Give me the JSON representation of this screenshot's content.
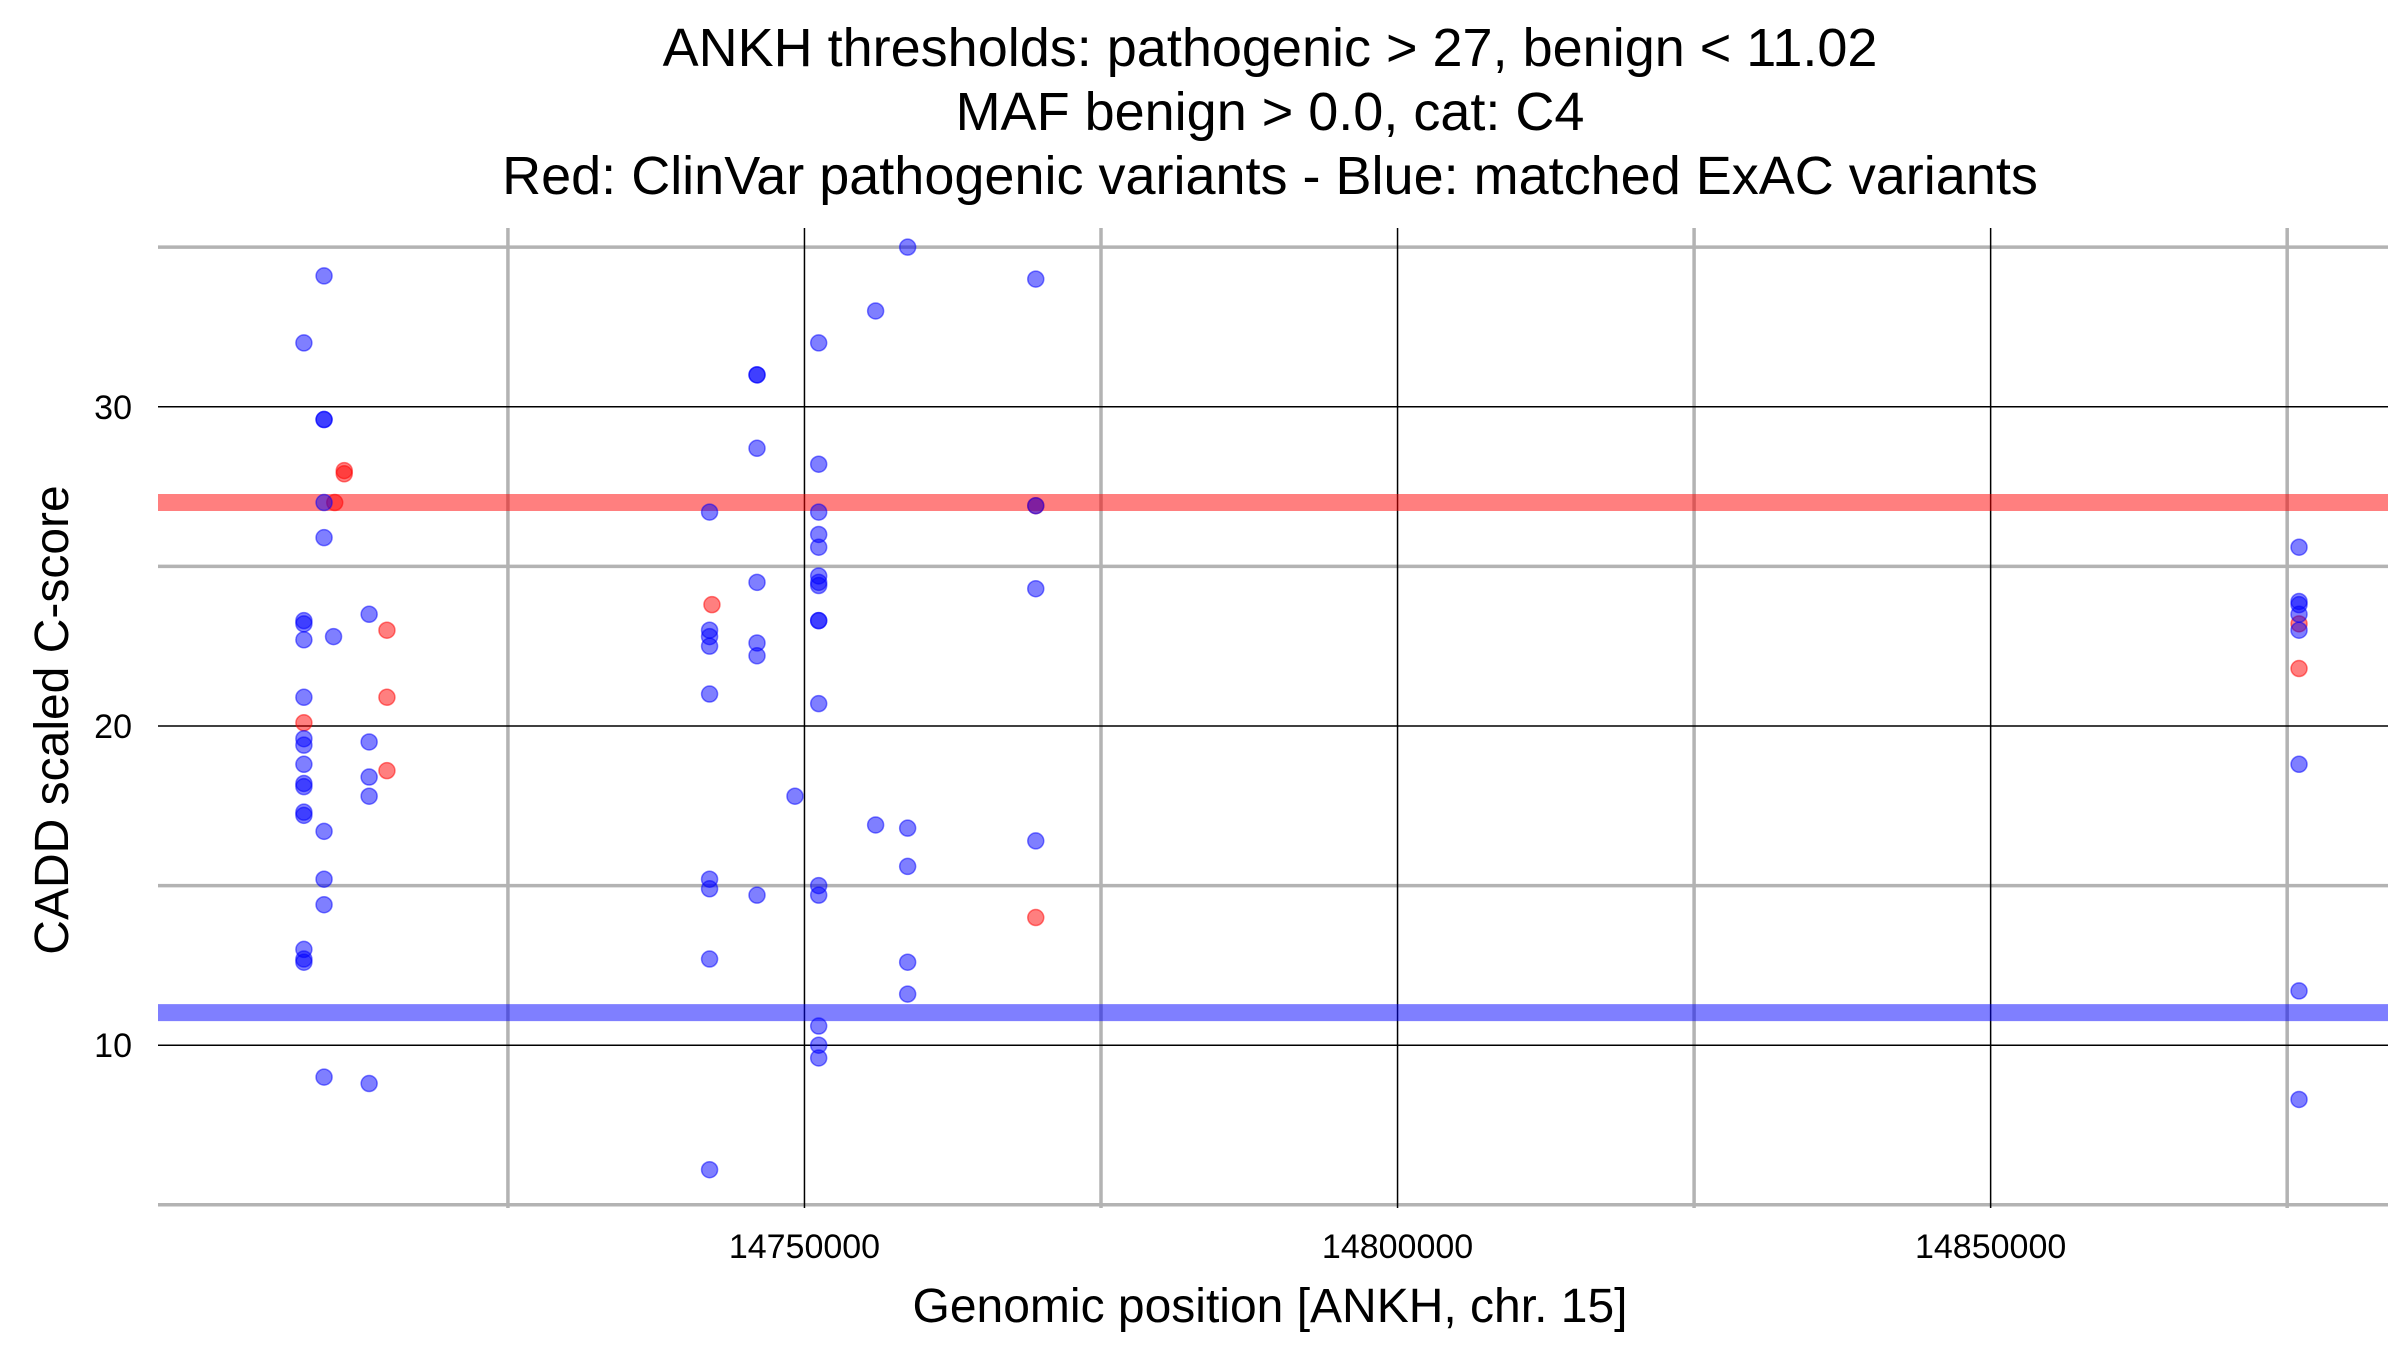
{
  "chart_data": {
    "type": "scatter",
    "title": [
      "ANKH thresholds: pathogenic > 27, benign < 11.02",
      "MAF benign > 0.0, cat: C4",
      "Red: ClinVar pathogenic variants - Blue: matched ExAC variants"
    ],
    "xlabel": "Genomic position [ANKH, chr. 15]",
    "ylabel": "CADD scaled C-score",
    "xlim": [
      14695500,
      14883500
    ],
    "ylim": [
      4.9,
      35.6
    ],
    "x_major_ticks": [
      14750000,
      14800000,
      14850000
    ],
    "x_tick_labels": [
      "14750000",
      "14800000",
      "14850000"
    ],
    "x_minor_ticks": [
      14725000,
      14775000,
      14825000,
      14875000
    ],
    "y_major_ticks": [
      10,
      20,
      30
    ],
    "y_tick_labels": [
      "10",
      "20",
      "30"
    ],
    "y_minor_ticks": [
      5,
      15,
      25,
      35
    ],
    "grid": true,
    "thresholds": [
      {
        "name": "pathogenic",
        "value": 27,
        "color": "#ff0000"
      },
      {
        "name": "benign",
        "value": 11.02,
        "color": "#0000ff"
      }
    ],
    "series": [
      {
        "name": "ClinVar pathogenic variants",
        "color": "#ff0000",
        "points": [
          [
            14711200,
            28.0
          ],
          [
            14711200,
            27.9
          ],
          [
            14710400,
            27.0
          ],
          [
            14714800,
            23.0
          ],
          [
            14714800,
            20.9
          ],
          [
            14714800,
            18.6
          ],
          [
            14707800,
            20.1
          ],
          [
            14742200,
            23.8
          ],
          [
            14769500,
            14.0
          ],
          [
            14769500,
            26.9
          ],
          [
            14876000,
            23.2
          ],
          [
            14876000,
            21.8
          ]
        ]
      },
      {
        "name": "matched ExAC variants",
        "color": "#0000ff",
        "points": [
          [
            14707800,
            32.0
          ],
          [
            14707800,
            23.3
          ],
          [
            14707800,
            23.2
          ],
          [
            14707800,
            22.7
          ],
          [
            14707800,
            20.9
          ],
          [
            14707800,
            19.6
          ],
          [
            14707800,
            19.4
          ],
          [
            14707800,
            18.8
          ],
          [
            14707800,
            18.2
          ],
          [
            14707800,
            18.1
          ],
          [
            14707800,
            17.3
          ],
          [
            14707800,
            17.2
          ],
          [
            14707800,
            13.0
          ],
          [
            14707800,
            12.7
          ],
          [
            14707800,
            12.6
          ],
          [
            14709500,
            34.1
          ],
          [
            14709500,
            29.6
          ],
          [
            14709500,
            29.6
          ],
          [
            14709500,
            27.0
          ],
          [
            14709500,
            25.9
          ],
          [
            14709500,
            16.7
          ],
          [
            14709500,
            15.2
          ],
          [
            14709500,
            14.4
          ],
          [
            14709500,
            9.0
          ],
          [
            14710300,
            22.8
          ],
          [
            14713300,
            23.5
          ],
          [
            14713300,
            19.5
          ],
          [
            14713300,
            18.4
          ],
          [
            14713300,
            17.8
          ],
          [
            14713300,
            8.8
          ],
          [
            14742000,
            26.7
          ],
          [
            14742000,
            23.0
          ],
          [
            14742000,
            22.8
          ],
          [
            14742000,
            22.5
          ],
          [
            14742000,
            21.0
          ],
          [
            14742000,
            15.2
          ],
          [
            14742000,
            14.9
          ],
          [
            14742000,
            12.7
          ],
          [
            14742000,
            6.1
          ],
          [
            14746000,
            31.0
          ],
          [
            14746000,
            31.0
          ],
          [
            14746000,
            28.7
          ],
          [
            14746000,
            24.5
          ],
          [
            14746000,
            22.6
          ],
          [
            14746000,
            22.2
          ],
          [
            14746000,
            14.7
          ],
          [
            14749200,
            17.8
          ],
          [
            14751200,
            32.0
          ],
          [
            14751200,
            28.2
          ],
          [
            14751200,
            26.7
          ],
          [
            14751200,
            26.0
          ],
          [
            14751200,
            25.6
          ],
          [
            14751200,
            24.7
          ],
          [
            14751200,
            24.5
          ],
          [
            14751200,
            24.4
          ],
          [
            14751200,
            23.3
          ],
          [
            14751200,
            23.3
          ],
          [
            14751200,
            20.7
          ],
          [
            14751200,
            15.0
          ],
          [
            14751200,
            14.7
          ],
          [
            14751200,
            10.6
          ],
          [
            14751200,
            10.0
          ],
          [
            14751200,
            9.6
          ],
          [
            14756000,
            33.0
          ],
          [
            14756000,
            16.9
          ],
          [
            14758700,
            35.0
          ],
          [
            14758700,
            16.8
          ],
          [
            14758700,
            15.6
          ],
          [
            14758700,
            12.6
          ],
          [
            14758700,
            11.6
          ],
          [
            14769500,
            34.0
          ],
          [
            14769500,
            26.9
          ],
          [
            14769500,
            24.3
          ],
          [
            14769500,
            16.4
          ],
          [
            14876000,
            25.6
          ],
          [
            14876000,
            23.9
          ],
          [
            14876000,
            23.8
          ],
          [
            14876000,
            23.5
          ],
          [
            14876000,
            23.0
          ],
          [
            14876000,
            18.8
          ],
          [
            14876000,
            11.7
          ],
          [
            14876000,
            8.3
          ]
        ]
      }
    ]
  }
}
